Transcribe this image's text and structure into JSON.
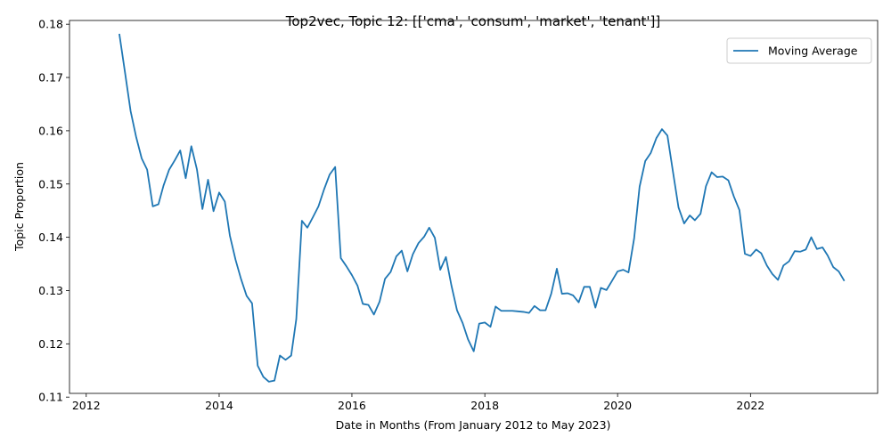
{
  "chart_data": {
    "type": "line",
    "title": "Top2vec, Topic 12: [['cma', 'consum', 'market', 'tenant']]",
    "xlabel": "Date in Months (From January 2012 to May 2023)",
    "ylabel": "Topic Proportion",
    "xlim": [
      "2011-10-01",
      "2023-12-01"
    ],
    "ylim": [
      0.1107,
      0.1807
    ],
    "xticks": [
      {
        "date": "2012-01-01",
        "label": "2012"
      },
      {
        "date": "2014-01-01",
        "label": "2014"
      },
      {
        "date": "2016-01-01",
        "label": "2016"
      },
      {
        "date": "2018-01-01",
        "label": "2018"
      },
      {
        "date": "2020-01-01",
        "label": "2020"
      },
      {
        "date": "2022-01-01",
        "label": "2022"
      }
    ],
    "yticks": [
      {
        "value": 0.11,
        "label": "0.11"
      },
      {
        "value": 0.12,
        "label": "0.12"
      },
      {
        "value": 0.13,
        "label": "0.13"
      },
      {
        "value": 0.14,
        "label": "0.14"
      },
      {
        "value": 0.15,
        "label": "0.15"
      },
      {
        "value": 0.16,
        "label": "0.16"
      },
      {
        "value": 0.17,
        "label": "0.17"
      },
      {
        "value": 0.18,
        "label": "0.18"
      }
    ],
    "grid": false,
    "legend": {
      "position": "top-right",
      "entries": [
        "Moving Average"
      ]
    },
    "series": [
      {
        "name": "Moving Average",
        "color": "#1f77b4",
        "points": [
          [
            "2012-07-01",
            0.1782
          ],
          [
            "2012-08-01",
            0.171
          ],
          [
            "2012-09-01",
            0.1637
          ],
          [
            "2012-10-01",
            0.1589
          ],
          [
            "2012-11-01",
            0.1548
          ],
          [
            "2012-12-01",
            0.1527
          ],
          [
            "2013-01-01",
            0.1458
          ],
          [
            "2013-02-01",
            0.1462
          ],
          [
            "2013-03-01",
            0.1497
          ],
          [
            "2013-04-01",
            0.1527
          ],
          [
            "2013-05-01",
            0.1544
          ],
          [
            "2013-06-01",
            0.1563
          ],
          [
            "2013-07-01",
            0.1511
          ],
          [
            "2013-08-01",
            0.1571
          ],
          [
            "2013-09-01",
            0.1527
          ],
          [
            "2013-10-01",
            0.1453
          ],
          [
            "2013-11-01",
            0.1508
          ],
          [
            "2013-12-01",
            0.1449
          ],
          [
            "2014-01-01",
            0.1484
          ],
          [
            "2014-02-01",
            0.1467
          ],
          [
            "2014-03-01",
            0.1403
          ],
          [
            "2014-04-01",
            0.1358
          ],
          [
            "2014-05-01",
            0.1322
          ],
          [
            "2014-06-01",
            0.129
          ],
          [
            "2014-07-01",
            0.1276
          ],
          [
            "2014-08-01",
            0.1159
          ],
          [
            "2014-09-01",
            0.1138
          ],
          [
            "2014-10-01",
            0.1129
          ],
          [
            "2014-11-01",
            0.1131
          ],
          [
            "2014-12-01",
            0.1178
          ],
          [
            "2015-01-01",
            0.117
          ],
          [
            "2015-02-01",
            0.1178
          ],
          [
            "2015-03-01",
            0.1246
          ],
          [
            "2015-04-01",
            0.1431
          ],
          [
            "2015-05-01",
            0.1418
          ],
          [
            "2015-06-01",
            0.1438
          ],
          [
            "2015-07-01",
            0.1458
          ],
          [
            "2015-08-01",
            0.149
          ],
          [
            "2015-09-01",
            0.1518
          ],
          [
            "2015-10-01",
            0.1532
          ],
          [
            "2015-11-01",
            0.1361
          ],
          [
            "2015-12-01",
            0.1346
          ],
          [
            "2016-01-01",
            0.1329
          ],
          [
            "2016-02-01",
            0.1309
          ],
          [
            "2016-03-01",
            0.1275
          ],
          [
            "2016-04-01",
            0.1273
          ],
          [
            "2016-05-01",
            0.1255
          ],
          [
            "2016-06-01",
            0.1279
          ],
          [
            "2016-07-01",
            0.1322
          ],
          [
            "2016-08-01",
            0.1335
          ],
          [
            "2016-09-01",
            0.1364
          ],
          [
            "2016-10-01",
            0.1375
          ],
          [
            "2016-11-01",
            0.1336
          ],
          [
            "2016-12-01",
            0.1368
          ],
          [
            "2017-01-01",
            0.1389
          ],
          [
            "2017-02-01",
            0.1401
          ],
          [
            "2017-03-01",
            0.1418
          ],
          [
            "2017-04-01",
            0.1399
          ],
          [
            "2017-05-01",
            0.1339
          ],
          [
            "2017-06-01",
            0.1363
          ],
          [
            "2017-07-01",
            0.131
          ],
          [
            "2017-08-01",
            0.1263
          ],
          [
            "2017-09-01",
            0.1239
          ],
          [
            "2017-10-01",
            0.1208
          ],
          [
            "2017-11-01",
            0.1186
          ],
          [
            "2017-12-01",
            0.1238
          ],
          [
            "2018-01-01",
            0.124
          ],
          [
            "2018-02-01",
            0.1232
          ],
          [
            "2018-03-01",
            0.127
          ],
          [
            "2018-04-01",
            0.1262
          ],
          [
            "2018-05-01",
            0.1262
          ],
          [
            "2018-06-01",
            0.1262
          ],
          [
            "2018-07-01",
            0.1261
          ],
          [
            "2018-08-01",
            0.126
          ],
          [
            "2018-09-01",
            0.1258
          ],
          [
            "2018-10-01",
            0.1271
          ],
          [
            "2018-11-01",
            0.1263
          ],
          [
            "2018-12-01",
            0.1263
          ],
          [
            "2019-01-01",
            0.1294
          ],
          [
            "2019-02-01",
            0.1341
          ],
          [
            "2019-03-01",
            0.1294
          ],
          [
            "2019-04-01",
            0.1295
          ],
          [
            "2019-05-01",
            0.1291
          ],
          [
            "2019-06-01",
            0.1278
          ],
          [
            "2019-07-01",
            0.1307
          ],
          [
            "2019-08-01",
            0.1307
          ],
          [
            "2019-09-01",
            0.1268
          ],
          [
            "2019-10-01",
            0.1305
          ],
          [
            "2019-11-01",
            0.1301
          ],
          [
            "2019-12-01",
            0.1318
          ],
          [
            "2020-01-01",
            0.1336
          ],
          [
            "2020-02-01",
            0.1339
          ],
          [
            "2020-03-01",
            0.1334
          ],
          [
            "2020-04-01",
            0.1398
          ],
          [
            "2020-05-01",
            0.1495
          ],
          [
            "2020-06-01",
            0.1543
          ],
          [
            "2020-07-01",
            0.1558
          ],
          [
            "2020-08-01",
            0.1586
          ],
          [
            "2020-09-01",
            0.1603
          ],
          [
            "2020-10-01",
            0.1591
          ],
          [
            "2020-11-01",
            0.1522
          ],
          [
            "2020-12-01",
            0.1456
          ],
          [
            "2021-01-01",
            0.1426
          ],
          [
            "2021-02-01",
            0.1441
          ],
          [
            "2021-03-01",
            0.1432
          ],
          [
            "2021-04-01",
            0.1444
          ],
          [
            "2021-05-01",
            0.1496
          ],
          [
            "2021-06-01",
            0.1522
          ],
          [
            "2021-07-01",
            0.1513
          ],
          [
            "2021-08-01",
            0.1514
          ],
          [
            "2021-09-01",
            0.1507
          ],
          [
            "2021-10-01",
            0.1477
          ],
          [
            "2021-11-01",
            0.1451
          ],
          [
            "2021-12-01",
            0.1369
          ],
          [
            "2022-01-01",
            0.1365
          ],
          [
            "2022-02-01",
            0.1377
          ],
          [
            "2022-03-01",
            0.137
          ],
          [
            "2022-04-01",
            0.1347
          ],
          [
            "2022-05-01",
            0.1331
          ],
          [
            "2022-06-01",
            0.132
          ],
          [
            "2022-07-01",
            0.1347
          ],
          [
            "2022-08-01",
            0.1355
          ],
          [
            "2022-09-01",
            0.1374
          ],
          [
            "2022-10-01",
            0.1373
          ],
          [
            "2022-11-01",
            0.1377
          ],
          [
            "2022-12-01",
            0.14
          ],
          [
            "2023-01-01",
            0.1378
          ],
          [
            "2023-02-01",
            0.1381
          ],
          [
            "2023-03-01",
            0.1366
          ],
          [
            "2023-04-01",
            0.1344
          ],
          [
            "2023-05-01",
            0.1336
          ],
          [
            "2023-06-01",
            0.1318
          ]
        ]
      }
    ]
  }
}
